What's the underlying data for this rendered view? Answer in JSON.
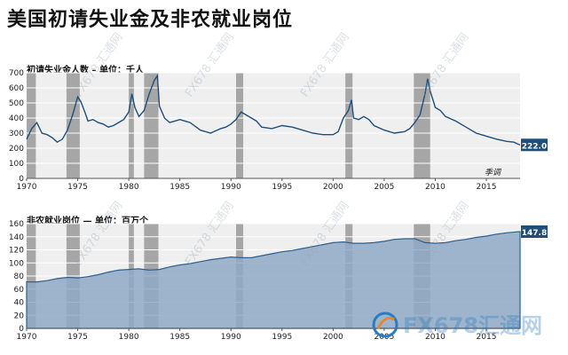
{
  "page": {
    "title": "美国初请失业金及非农就业岗位"
  },
  "colors": {
    "line": "#1f4e79",
    "area_fill": "#8ea9c6",
    "area_line": "#2e5e8e",
    "recession": "#a6a6a6",
    "plot_bg": "#efefef",
    "label_box": "#1f4e79"
  },
  "watermark": {
    "text": "FX678 汇通网"
  },
  "logo": {
    "text": "FX678汇通网",
    "icon": "fx678-logo-icon"
  },
  "recessions": [
    [
      1969.9,
      1970.9
    ],
    [
      1973.9,
      1975.2
    ],
    [
      1980.0,
      1980.5
    ],
    [
      1981.5,
      1982.9
    ],
    [
      1990.5,
      1991.2
    ],
    [
      2001.2,
      2001.9
    ],
    [
      2007.9,
      2009.5
    ]
  ],
  "x_ticks": [
    1970,
    1975,
    1980,
    1985,
    1990,
    1995,
    2000,
    2005,
    2010,
    2015
  ],
  "chart_data": [
    {
      "type": "line",
      "title": "初请失业金人数 – 单位：千人",
      "xlim": [
        1970,
        2018.3
      ],
      "ylim": [
        0,
        700
      ],
      "y_ticks": [
        0,
        100,
        200,
        300,
        400,
        500,
        600,
        700
      ],
      "grid": true,
      "last_value_label": "222.0",
      "annotation": "季调",
      "series": [
        {
          "x": [
            1970,
            1970.5,
            1971,
            1971.5,
            1972,
            1972.5,
            1973,
            1973.5,
            1974,
            1974.5,
            1975,
            1975.3,
            1975.7,
            1976,
            1976.5,
            1977,
            1977.5,
            1978,
            1978.5,
            1979,
            1979.5,
            1980,
            1980.3,
            1980.6,
            1981,
            1981.5,
            1982,
            1982.5,
            1982.8,
            1983,
            1983.5,
            1984,
            1984.5,
            1985,
            1985.5,
            1986,
            1987,
            1988,
            1989,
            1989.5,
            1990,
            1990.5,
            1991,
            1991.5,
            1992,
            1992.5,
            1993,
            1994,
            1995,
            1996,
            1997,
            1998,
            1999,
            2000,
            2000.5,
            2001,
            2001.5,
            2001.8,
            2002,
            2002.5,
            2003,
            2003.5,
            2004,
            2005,
            2006,
            2007,
            2007.5,
            2008,
            2008.5,
            2009,
            2009.25,
            2009.5,
            2010,
            2010.5,
            2011,
            2012,
            2013,
            2014,
            2015,
            2016,
            2017,
            2017.7,
            2018,
            2018.3
          ],
          "y": [
            260,
            330,
            370,
            300,
            290,
            270,
            240,
            260,
            320,
            420,
            540,
            510,
            440,
            380,
            390,
            370,
            360,
            340,
            350,
            370,
            390,
            440,
            560,
            470,
            410,
            450,
            560,
            650,
            680,
            480,
            400,
            370,
            380,
            390,
            380,
            370,
            320,
            300,
            330,
            340,
            360,
            390,
            440,
            420,
            400,
            380,
            340,
            330,
            350,
            340,
            320,
            300,
            290,
            290,
            310,
            400,
            450,
            520,
            400,
            390,
            410,
            390,
            350,
            320,
            300,
            310,
            330,
            370,
            420,
            560,
            660,
            580,
            470,
            450,
            410,
            380,
            340,
            300,
            280,
            260,
            245,
            240,
            230,
            222
          ]
        }
      ]
    },
    {
      "type": "area",
      "title": "非农就业岗位 — 单位：百万个",
      "xlim": [
        1970,
        2018.3
      ],
      "ylim": [
        0,
        160
      ],
      "y_ticks": [
        0,
        20,
        40,
        60,
        80,
        100,
        120,
        140,
        160
      ],
      "grid": true,
      "last_value_label": "147.8",
      "series": [
        {
          "x": [
            1970,
            1971,
            1972,
            1973,
            1974,
            1975,
            1976,
            1977,
            1978,
            1979,
            1980,
            1981,
            1982,
            1983,
            1984,
            1985,
            1986,
            1987,
            1988,
            1989,
            1990,
            1991,
            1992,
            1993,
            1994,
            1995,
            1996,
            1997,
            1998,
            1999,
            2000,
            2001,
            2002,
            2003,
            2004,
            2005,
            2006,
            2007,
            2008,
            2009,
            2010,
            2011,
            2012,
            2013,
            2014,
            2015,
            2016,
            2017,
            2018,
            2018.3
          ],
          "y": [
            71,
            71,
            73,
            76,
            78,
            77,
            79,
            82,
            86,
            89,
            90,
            91,
            89,
            90,
            94,
            97,
            99,
            102,
            105,
            107,
            109,
            108,
            108,
            111,
            114,
            117,
            119,
            122,
            125,
            128,
            131,
            132,
            130,
            130,
            131,
            133,
            136,
            137,
            137,
            131,
            130,
            131,
            134,
            136,
            139,
            141,
            144,
            146,
            147.5,
            147.8
          ]
        }
      ]
    }
  ]
}
